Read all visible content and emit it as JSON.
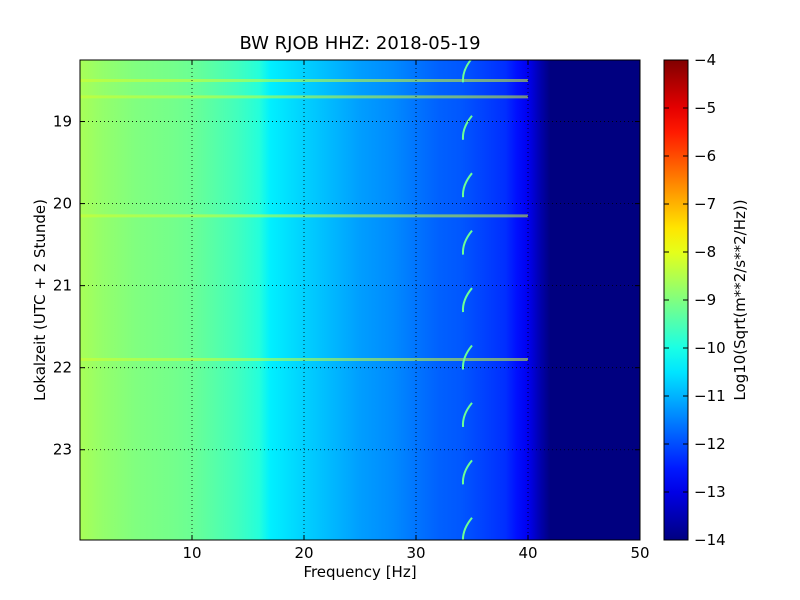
{
  "chart_data": {
    "type": "heatmap",
    "title": "BW RJOB HHZ: 2018-05-19",
    "xlabel": "Frequency [Hz]",
    "ylabel": "Lokalzeit (UTC + 2 Stunde)",
    "xlim": [
      0,
      50
    ],
    "ylim": [
      18.25,
      24.1
    ],
    "x_ticks": [
      10,
      20,
      30,
      40,
      50
    ],
    "y_ticks": [
      19,
      20,
      21,
      22,
      23
    ],
    "y_inverted": true,
    "grid": true,
    "colormap": "jet",
    "colorbar": {
      "label": "Log10(Sqrt(m**2/s**2/Hz))",
      "min": -14,
      "max": -4,
      "ticks": [
        -4,
        -5,
        -6,
        -7,
        -8,
        -9,
        -10,
        -11,
        -12,
        -13,
        -14
      ]
    },
    "spectrum_profile": {
      "frequency_hz": [
        0,
        2,
        5,
        8,
        10,
        12,
        14,
        16,
        17,
        20,
        22,
        25,
        28,
        30,
        32,
        34,
        36,
        38,
        39,
        40,
        41,
        42,
        50
      ],
      "value": [
        -8.6,
        -8.8,
        -9.0,
        -9.1,
        -9.2,
        -9.4,
        -9.6,
        -9.9,
        -10.4,
        -10.7,
        -10.9,
        -11.2,
        -11.4,
        -11.6,
        -11.8,
        -11.9,
        -12.1,
        -12.3,
        -12.6,
        -12.9,
        -13.5,
        -14.0,
        -14.0
      ]
    },
    "horizontal_lines_hours": [
      18.5,
      18.7,
      20.15,
      21.9
    ],
    "tonal_arcs_hours": [
      18.4,
      19.1,
      19.8,
      20.5,
      21.2,
      21.9,
      22.6,
      23.3,
      24.0
    ]
  }
}
